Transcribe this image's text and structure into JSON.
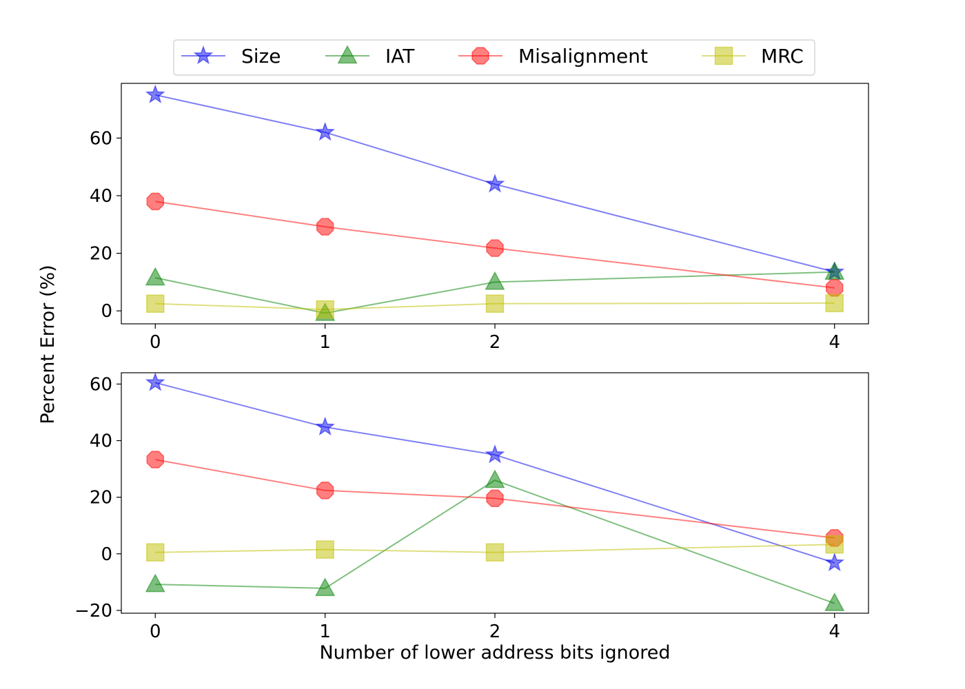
{
  "chart_data": {
    "type": "line",
    "xlabel": "Number of lower address bits ignored",
    "ylabel": "Percent Error (%)",
    "legend": {
      "placement": "top-center",
      "entries": [
        {
          "name": "Size",
          "color": "#0000ee",
          "marker": "star"
        },
        {
          "name": "IAT",
          "color": "#008000",
          "marker": "triangle"
        },
        {
          "name": "Misalignment",
          "color": "#ff0000",
          "marker": "octagon"
        },
        {
          "name": "MRC",
          "color": "#bfbf00",
          "marker": "square"
        }
      ]
    },
    "x": [
      0,
      1,
      2,
      4
    ],
    "x_tick_labels": [
      "0",
      "1",
      "2",
      "4"
    ],
    "panels": [
      {
        "ylim": [
          -4.5,
          79
        ],
        "y_ticks": [
          0,
          20,
          40,
          60
        ],
        "y_tick_labels": [
          "0",
          "20",
          "40",
          "60"
        ],
        "series": [
          {
            "name": "Size",
            "values": [
              75,
              62,
              44,
              13.5
            ]
          },
          {
            "name": "IAT",
            "values": [
              11.5,
              -0.8,
              10,
              13.5
            ]
          },
          {
            "name": "Misalignment",
            "values": [
              38,
              29.2,
              21.8,
              8
            ]
          },
          {
            "name": "MRC",
            "values": [
              2.5,
              0.5,
              2.5,
              2.7
            ]
          }
        ]
      },
      {
        "ylim": [
          -21,
          64
        ],
        "y_ticks": [
          -20,
          0,
          20,
          40,
          60
        ],
        "y_tick_labels": [
          "−20",
          "0",
          "20",
          "40",
          "60"
        ],
        "series": [
          {
            "name": "Size",
            "values": [
              60.5,
              44.8,
              35,
              -3.2
            ]
          },
          {
            "name": "IAT",
            "values": [
              -10.8,
              -12.2,
              26,
              -17.5
            ]
          },
          {
            "name": "Misalignment",
            "values": [
              33.3,
              22.4,
              19.6,
              5.6
            ]
          },
          {
            "name": "MRC",
            "values": [
              0.5,
              1.5,
              0.5,
              3.3
            ]
          }
        ]
      }
    ]
  }
}
